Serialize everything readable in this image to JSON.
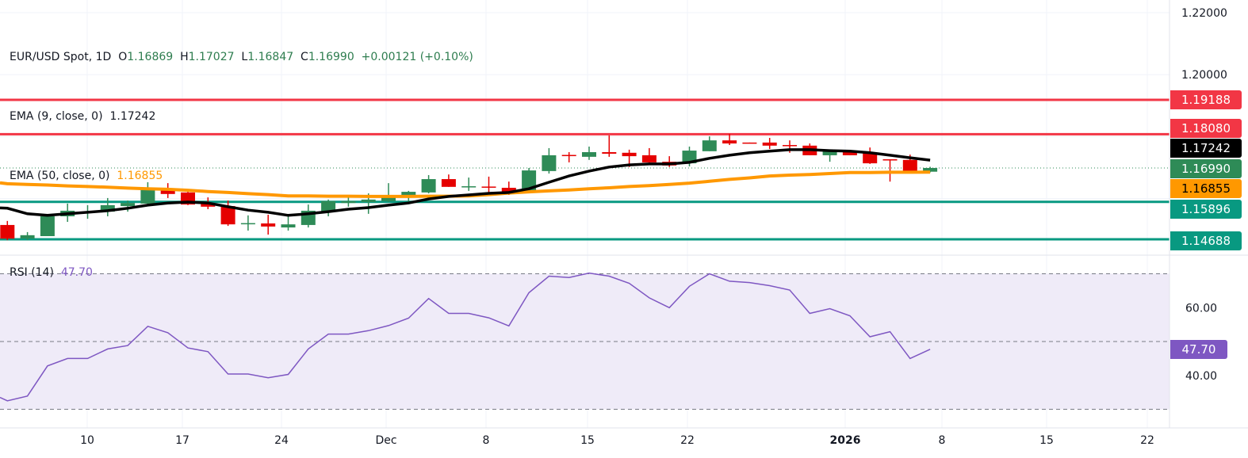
{
  "legend": {
    "symbol": "EUR/USD Spot, 1D",
    "o_label": "O",
    "o": "1.16869",
    "h_label": "H",
    "h": "1.17027",
    "l_label": "L",
    "l": "1.16847",
    "c_label": "C",
    "c": "1.16990",
    "change": "+0.00121 (+0.10%)",
    "ema9_label": "EMA (9, close, 0)",
    "ema9_value": "1.17242",
    "ema50_label": "EMA (50, close, 0)",
    "ema50_value": "1.16855",
    "rsi_label": "RSI (14)",
    "rsi_value": "47.70"
  },
  "colors": {
    "up": "#2e8b57",
    "down": "#e50000",
    "resistance": "#f23645",
    "support": "#089981",
    "ema9": "#000000",
    "ema50": "#ff9800",
    "rsi": "#7e57c2",
    "rsi_band": "#efebf8"
  },
  "chart_data": {
    "type": "candlestick",
    "timeframe": "1D",
    "x_tick_labels": [
      "10",
      "17",
      "24",
      "Dec",
      "8",
      "15",
      "22",
      "2026",
      "8",
      "15",
      "22"
    ],
    "price_axis": {
      "ticks": [
        "1.22000",
        "1.20000"
      ],
      "range": [
        1.143,
        1.224
      ]
    },
    "candles": [
      [
        1.1515,
        1.1528,
        1.1466,
        1.1471
      ],
      [
        1.1471,
        1.1492,
        1.1466,
        1.1482
      ],
      [
        1.1479,
        1.1548,
        1.1479,
        1.1543
      ],
      [
        1.1543,
        1.1584,
        1.1525,
        1.1561
      ],
      [
        1.1556,
        1.1579,
        1.1535,
        1.1558
      ],
      [
        1.1558,
        1.1602,
        1.1543,
        1.1579
      ],
      [
        1.1576,
        1.1594,
        1.1558,
        1.1586
      ],
      [
        1.1584,
        1.1653,
        1.1579,
        1.163
      ],
      [
        1.163,
        1.165,
        1.1602,
        1.1615
      ],
      [
        1.162,
        1.1622,
        1.1579,
        1.1581
      ],
      [
        1.1584,
        1.1604,
        1.1566,
        1.1574
      ],
      [
        1.1576,
        1.1594,
        1.1512,
        1.1517
      ],
      [
        1.152,
        1.1546,
        1.1497,
        1.1521
      ],
      [
        1.152,
        1.1548,
        1.1484,
        1.151
      ],
      [
        1.1507,
        1.1546,
        1.1497,
        1.1517
      ],
      [
        1.1515,
        1.1581,
        1.1507,
        1.1561
      ],
      [
        1.1558,
        1.1597,
        1.1543,
        1.1592
      ],
      [
        1.1586,
        1.1609,
        1.1574,
        1.1592
      ],
      [
        1.1589,
        1.1617,
        1.1551,
        1.1597
      ],
      [
        1.1592,
        1.165,
        1.1589,
        1.1607
      ],
      [
        1.1604,
        1.1625,
        1.1589,
        1.1622
      ],
      [
        1.162,
        1.1676,
        1.1617,
        1.1663
      ],
      [
        1.1663,
        1.1678,
        1.1638,
        1.1638
      ],
      [
        1.1639,
        1.1668,
        1.1625,
        1.164
      ],
      [
        1.1639,
        1.1671,
        1.1612,
        1.1638
      ],
      [
        1.1635,
        1.1655,
        1.1612,
        1.1622
      ],
      [
        1.1622,
        1.1699,
        1.1617,
        1.1691
      ],
      [
        1.1689,
        1.1763,
        1.1681,
        1.174
      ],
      [
        1.1741,
        1.175,
        1.1717,
        1.174
      ],
      [
        1.1735,
        1.1768,
        1.1725,
        1.175
      ],
      [
        1.175,
        1.1804,
        1.1735,
        1.1745
      ],
      [
        1.1748,
        1.1758,
        1.1702,
        1.1737
      ],
      [
        1.174,
        1.1763,
        1.1712,
        1.1717
      ],
      [
        1.1719,
        1.1737,
        1.1702,
        1.1707
      ],
      [
        1.1714,
        1.1768,
        1.1704,
        1.1755
      ],
      [
        1.1753,
        1.1801,
        1.1753,
        1.1788
      ],
      [
        1.1788,
        1.1809,
        1.1773,
        1.1778
      ],
      [
        1.1781,
        1.1781,
        1.178,
        1.178
      ],
      [
        1.1781,
        1.1796,
        1.176,
        1.1771
      ],
      [
        1.1773,
        1.1788,
        1.1748,
        1.1772
      ],
      [
        1.1771,
        1.1778,
        1.174,
        1.174
      ],
      [
        1.174,
        1.1758,
        1.1719,
        1.1753
      ],
      [
        1.1753,
        1.1753,
        1.174,
        1.174
      ],
      [
        1.1748,
        1.1765,
        1.1712,
        1.1714
      ],
      [
        1.1727,
        1.1727,
        1.1655,
        1.1726
      ],
      [
        1.1725,
        1.1742,
        1.1681,
        1.1681
      ],
      [
        1.16869,
        1.17027,
        1.16847,
        1.1699
      ]
    ],
    "ema9": [
      1.1569,
      1.1551,
      1.1546,
      1.1551,
      1.1556,
      1.1561,
      1.1569,
      1.1579,
      1.1586,
      1.1589,
      1.1586,
      1.1574,
      1.1563,
      1.1556,
      1.1546,
      1.1551,
      1.1558,
      1.1566,
      1.1571,
      1.1579,
      1.1586,
      1.1599,
      1.1607,
      1.1612,
      1.1617,
      1.162,
      1.1632,
      1.1653,
      1.1673,
      1.1689,
      1.1702,
      1.1709,
      1.1712,
      1.1712,
      1.1717,
      1.173,
      1.174,
      1.1748,
      1.1753,
      1.1758,
      1.1758,
      1.1755,
      1.1753,
      1.1748,
      1.174,
      1.1732,
      1.17242
    ],
    "ema50": [
      1.1648,
      1.1646,
      1.1644,
      1.1641,
      1.1639,
      1.1637,
      1.1634,
      1.1632,
      1.163,
      1.1627,
      1.1623,
      1.162,
      1.1616,
      1.1613,
      1.1609,
      1.1609,
      1.1608,
      1.1608,
      1.1607,
      1.1607,
      1.1607,
      1.1608,
      1.1608,
      1.1609,
      1.1613,
      1.1618,
      1.1622,
      1.1625,
      1.1628,
      1.1632,
      1.1635,
      1.1639,
      1.1642,
      1.1646,
      1.165,
      1.1656,
      1.1662,
      1.1667,
      1.1673,
      1.1676,
      1.1678,
      1.1681,
      1.1684,
      1.1684,
      1.1685,
      1.1685,
      1.16855
    ],
    "last_close": 1.1699,
    "horizontal_levels": [
      {
        "value": 1.19188,
        "label": "1.19188",
        "kind": "resistance"
      },
      {
        "value": 1.1808,
        "label": "1.18080",
        "kind": "resistance"
      },
      {
        "value": 1.15896,
        "label": "1.15896",
        "kind": "support"
      },
      {
        "value": 1.14688,
        "label": "1.14688",
        "kind": "support"
      }
    ],
    "price_tags": [
      {
        "label": "1.19188",
        "bg": "#f23645",
        "fg": "#ffffff"
      },
      {
        "label": "1.18080",
        "bg": "#f23645",
        "fg": "#ffffff"
      },
      {
        "label": "1.17242",
        "bg": "#000000",
        "fg": "#ffffff"
      },
      {
        "label": "1.16990",
        "bg": "#2e8b57",
        "fg": "#ffffff"
      },
      {
        "label": "1.16855",
        "bg": "#ff9800",
        "fg": "#000000"
      },
      {
        "label": "1.15896",
        "bg": "#089981",
        "fg": "#ffffff"
      },
      {
        "label": "1.14688",
        "bg": "#089981",
        "fg": "#ffffff"
      }
    ],
    "rsi": {
      "period": 14,
      "values": [
        32.5,
        33.9,
        42.8,
        45.0,
        45.0,
        47.8,
        48.8,
        54.5,
        52.6,
        48.1,
        47.0,
        40.4,
        40.4,
        39.3,
        40.3,
        47.8,
        52.2,
        52.2,
        53.2,
        54.7,
        56.9,
        62.7,
        58.3,
        58.3,
        57.0,
        54.6,
        64.4,
        69.3,
        68.9,
        70.2,
        69.3,
        67.2,
        62.9,
        60.0,
        66.3,
        70.0,
        67.8,
        67.4,
        66.5,
        65.2,
        58.3,
        59.7,
        57.6,
        51.4,
        52.9,
        45.0,
        47.7
      ],
      "levels": [
        70,
        50,
        30
      ],
      "axis_ticks": [
        "60.00",
        "40.00"
      ],
      "tag": "47.70"
    }
  }
}
